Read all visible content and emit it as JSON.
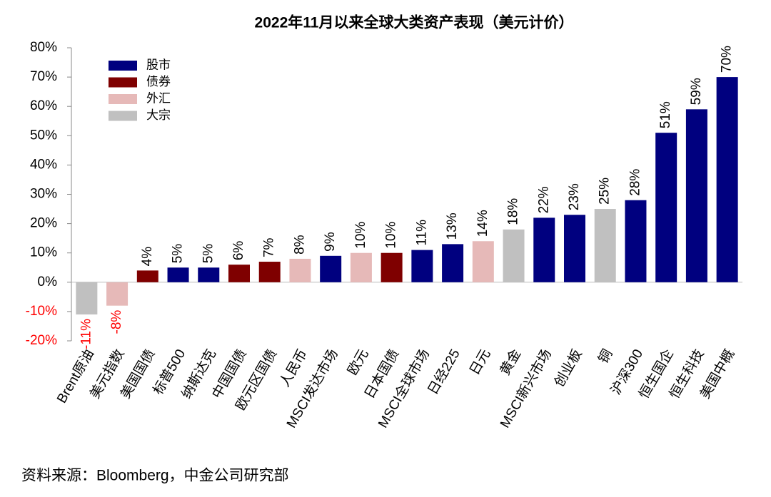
{
  "chart_data": {
    "type": "bar",
    "title": "2022年11月以来全球大类资产表现（美元计价）",
    "source": "资料来源：Bloomberg，中金公司研究部",
    "categories": [
      "Brent原油",
      "美元指数",
      "美国国债",
      "标普500",
      "纳斯达克",
      "中国国债",
      "欧元区国债",
      "人民币",
      "MSCI发达市场",
      "欧元",
      "日本国债",
      "MSCI全球市场",
      "日经225",
      "日元",
      "黄金",
      "MSCI新兴市场",
      "创业板",
      "铜",
      "沪深300",
      "恒生国企",
      "恒生科技",
      "美国中概"
    ],
    "series": [
      {
        "name": "股市",
        "color": "#00007f",
        "values": [
          null,
          null,
          null,
          5,
          5,
          null,
          null,
          null,
          9,
          null,
          null,
          11,
          13,
          null,
          null,
          22,
          23,
          null,
          28,
          51,
          59,
          70
        ],
        "value_labels": [
          null,
          null,
          null,
          "5%",
          "5%",
          null,
          null,
          null,
          "9%",
          null,
          null,
          "11%",
          "13%",
          null,
          null,
          "22%",
          "23%",
          null,
          "28%",
          "51%",
          "59%",
          "70%"
        ]
      },
      {
        "name": "债券",
        "color": "#7f0000",
        "values": [
          null,
          null,
          4,
          null,
          null,
          6,
          7,
          null,
          null,
          null,
          10,
          null,
          null,
          null,
          null,
          null,
          null,
          null,
          null,
          null,
          null,
          null
        ],
        "value_labels": [
          null,
          null,
          "4%",
          null,
          null,
          "6%",
          "7%",
          null,
          null,
          null,
          "10%",
          null,
          null,
          null,
          null,
          null,
          null,
          null,
          null,
          null,
          null,
          null
        ]
      },
      {
        "name": "外汇",
        "color": "#e6b9b8",
        "values": [
          null,
          -8,
          null,
          null,
          null,
          null,
          null,
          8,
          null,
          10,
          null,
          null,
          null,
          14,
          null,
          null,
          null,
          null,
          null,
          null,
          null,
          null
        ],
        "value_labels": [
          null,
          "-8%",
          null,
          null,
          null,
          null,
          null,
          "8%",
          null,
          "10%",
          null,
          null,
          null,
          "14%",
          null,
          null,
          null,
          null,
          null,
          null,
          null,
          null
        ]
      },
      {
        "name": "大宗",
        "color": "#c0c0c0",
        "values": [
          -11,
          null,
          null,
          null,
          null,
          null,
          null,
          null,
          null,
          null,
          null,
          null,
          null,
          null,
          18,
          null,
          null,
          25,
          null,
          null,
          null,
          null
        ],
        "value_labels": [
          "-11%",
          null,
          null,
          null,
          null,
          null,
          null,
          null,
          null,
          null,
          null,
          null,
          null,
          null,
          "18%",
          null,
          null,
          "25%",
          null,
          null,
          null,
          null
        ]
      }
    ],
    "ylim": [
      -20,
      80
    ],
    "yticks": [
      {
        "value": -20,
        "label": "-20%"
      },
      {
        "value": -10,
        "label": "-10%"
      },
      {
        "value": 0,
        "label": "0%"
      },
      {
        "value": 10,
        "label": "10%"
      },
      {
        "value": 20,
        "label": "20%"
      },
      {
        "value": 30,
        "label": "30%"
      },
      {
        "value": 40,
        "label": "40%"
      },
      {
        "value": 50,
        "label": "50%"
      },
      {
        "value": 60,
        "label": "60%"
      },
      {
        "value": 70,
        "label": "70%"
      },
      {
        "value": 80,
        "label": "80%"
      }
    ],
    "negative_color": "#ff0000",
    "legend": "upper left"
  }
}
